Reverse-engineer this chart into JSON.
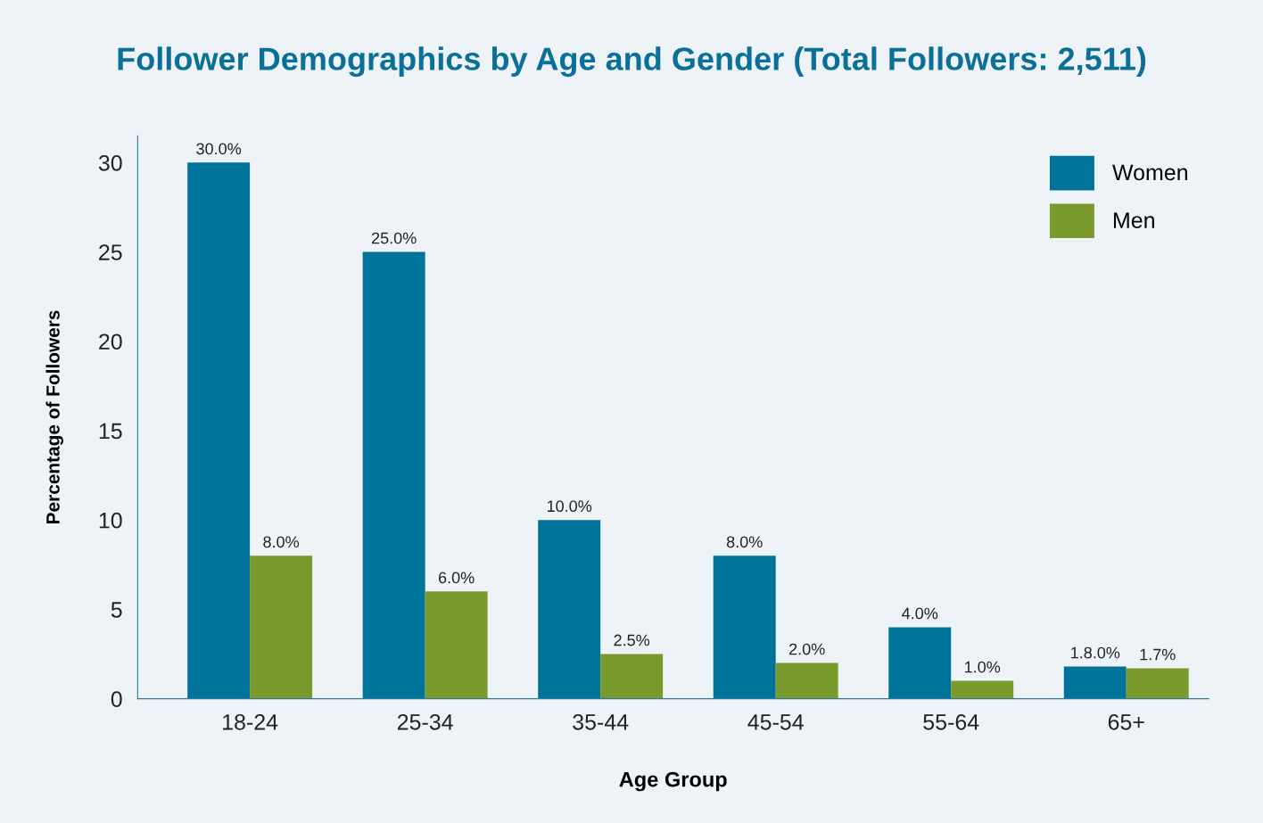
{
  "chart_data": {
    "type": "bar",
    "title": "Follower Demographics by Age and Gender (Total Followers: 2,511)",
    "xlabel": "Age Group",
    "ylabel": "Percentage of Followers",
    "categories": [
      "18-24",
      "25-34",
      "35-44",
      "45-54",
      "55-64",
      "65+"
    ],
    "series": [
      {
        "name": "Women",
        "color": "#00739a",
        "values": [
          30,
          25,
          10,
          8,
          4,
          1.8
        ],
        "value_labels": [
          "30.0%",
          "25.0%",
          "10.0%",
          "8.0%",
          "4.0%",
          "1.8.0%"
        ]
      },
      {
        "name": "Men",
        "color": "#7a9a2e",
        "values": [
          8,
          6,
          2.5,
          2,
          1,
          1.7
        ],
        "value_labels": [
          "8.0%",
          "6.0%",
          "2.5%",
          "2.0%",
          "1.0%",
          "1.7%"
        ]
      }
    ],
    "ylim": [
      0,
      31.5
    ],
    "yticks": [
      0,
      5,
      10,
      15,
      20,
      25,
      30
    ],
    "grid": false,
    "legend": "top right"
  }
}
